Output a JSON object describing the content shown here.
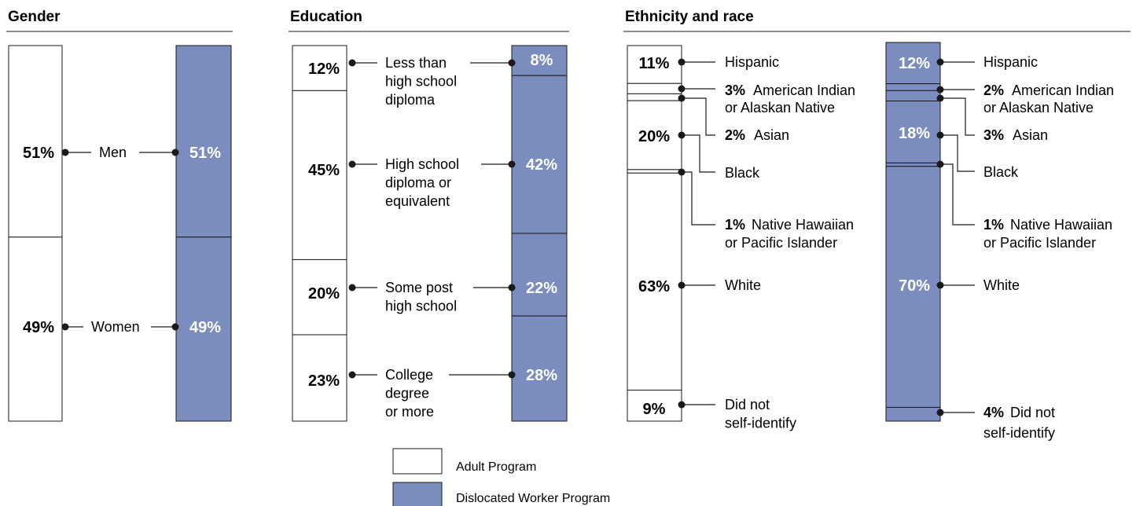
{
  "colors": {
    "adult": "#ffffff",
    "dislocated": "#7b8dbf",
    "stroke": "#1a1a1a"
  },
  "legend": {
    "adult_label": "Adult Program",
    "dislocated_label": "Dislocated Worker Program"
  },
  "chart_data": [
    {
      "type": "bar",
      "stacked": true,
      "title": "Gender",
      "series": [
        {
          "name": "Adult Program",
          "values": [
            51,
            49
          ]
        },
        {
          "name": "Dislocated Worker Program",
          "values": [
            51,
            49
          ]
        }
      ],
      "categories": [
        "Men",
        "Women"
      ],
      "labels": [
        {
          "text": "Men",
          "adult": "51%",
          "dw": "51%"
        },
        {
          "text": "Women",
          "adult": "49%",
          "dw": "49%"
        }
      ]
    },
    {
      "type": "bar",
      "stacked": true,
      "title": "Education",
      "series": [
        {
          "name": "Adult Program",
          "values": [
            12,
            45,
            20,
            23
          ]
        },
        {
          "name": "Dislocated Worker Program",
          "values": [
            8,
            42,
            22,
            28
          ]
        }
      ],
      "categories": [
        "Less than high school diploma",
        "High school diploma or equivalent",
        "Some post high school",
        "College degree or more"
      ],
      "labels": [
        {
          "lines": [
            "Less than",
            "high school",
            "diploma"
          ],
          "adult": "12%",
          "dw": "8%"
        },
        {
          "lines": [
            "High school",
            "diploma or",
            "equivalent"
          ],
          "adult": "45%",
          "dw": "42%"
        },
        {
          "lines": [
            "Some post",
            "high school"
          ],
          "adult": "20%",
          "dw": "22%"
        },
        {
          "lines": [
            "College",
            "degree",
            "or more"
          ],
          "adult": "23%",
          "dw": "28%"
        }
      ]
    },
    {
      "type": "bar",
      "stacked": true,
      "title": "Ethnicity and race",
      "series": [
        {
          "name": "Adult Program",
          "values": [
            11,
            3,
            2,
            20,
            1,
            63,
            9
          ]
        },
        {
          "name": "Dislocated Worker Program",
          "values": [
            12,
            2,
            3,
            18,
            1,
            70,
            4
          ]
        }
      ],
      "categories": [
        "Hispanic",
        "American Indian or Alaskan Native",
        "Asian",
        "Black",
        "Native Hawaiian or Pacific Islander",
        "White",
        "Did not self-identify"
      ],
      "adult_labels": [
        {
          "pct": "11%",
          "lines": [
            "Hispanic"
          ]
        },
        {
          "pct": "3%",
          "lines": [
            "American Indian",
            "or Alaskan Native"
          ]
        },
        {
          "pct": "2%",
          "lines": [
            "Asian"
          ]
        },
        {
          "pct": "20%",
          "lines": [
            "Black"
          ]
        },
        {
          "pct": "1%",
          "lines": [
            "Native Hawaiian",
            "or Pacific Islander"
          ]
        },
        {
          "pct": "63%",
          "lines": [
            "White"
          ]
        },
        {
          "pct": "9%",
          "lines": [
            "Did not",
            "self-identify"
          ]
        }
      ],
      "dw_labels": [
        {
          "pct": "12%",
          "lines": [
            "Hispanic"
          ]
        },
        {
          "pct": "2%",
          "lines": [
            "American Indian",
            "or Alaskan Native"
          ]
        },
        {
          "pct": "3%",
          "lines": [
            "Asian"
          ]
        },
        {
          "pct": "18%",
          "lines": [
            "Black"
          ]
        },
        {
          "pct": "1%",
          "lines": [
            "Native Hawaiian",
            "or Pacific Islander"
          ]
        },
        {
          "pct": "70%",
          "lines": [
            "White"
          ]
        },
        {
          "pct": "4%",
          "lines": [
            "Did not",
            "self-identify"
          ]
        }
      ]
    }
  ]
}
